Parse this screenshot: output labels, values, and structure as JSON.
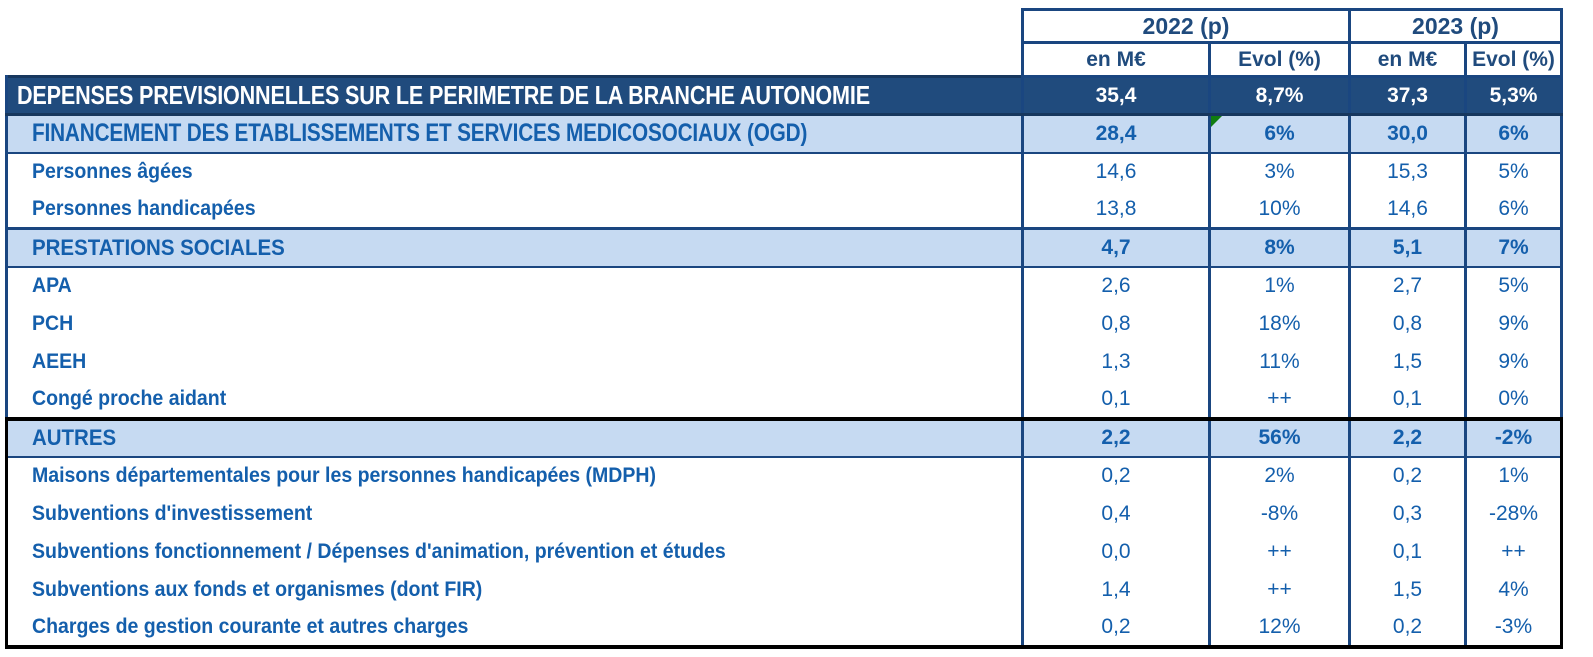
{
  "colors": {
    "navy_fill": "#204B7D",
    "navy_border": "#1A4680",
    "light_blue_fill": "#C6DAF2",
    "text_blue": "#145FAC",
    "black_border": "#000000",
    "error_flag_green": "#107C10",
    "total_text": "#ffffff"
  },
  "header": {
    "year_groups": [
      {
        "label": "2022 (p)"
      },
      {
        "label": "2023 (p)"
      }
    ],
    "subcols": [
      "en M€",
      "Evol (%)",
      "en M€",
      "Evol (%)"
    ]
  },
  "chart_data": {
    "type": "table",
    "title": "Dépenses prévisionnelles sur le périmètre de la branche Autonomie",
    "column_groups": [
      "2022 (p)",
      "2023 (p)"
    ],
    "columns": [
      "",
      "2022 en M€",
      "2022 Evol (%)",
      "2023 en M€",
      "2023 Evol (%)"
    ],
    "rows": [
      {
        "type": "total",
        "condensed": true,
        "label": "DEPENSES PREVISIONNELLES SUR LE PERIMETRE DE LA BRANCHE AUTONOMIE",
        "values": [
          "35,4",
          "8,7%",
          "37,3",
          "5,3%"
        ]
      },
      {
        "type": "section",
        "condensed": true,
        "label": "FINANCEMENT DES ETABLISSEMENTS ET SERVICES MEDICOSOCIAUX (OGD)",
        "values": [
          "28,4",
          "6%",
          "30,0",
          "6%"
        ],
        "flag_col": 1
      },
      {
        "type": "item",
        "condensed": false,
        "label": "Personnes âgées",
        "values": [
          "14,6",
          "3%",
          "15,3",
          "5%"
        ]
      },
      {
        "type": "item",
        "condensed": false,
        "label": "Personnes handicapées",
        "values": [
          "13,8",
          "10%",
          "14,6",
          "6%"
        ]
      },
      {
        "type": "section",
        "condensed": false,
        "label": "PRESTATIONS SOCIALES",
        "values": [
          "4,7",
          "8%",
          "5,1",
          "7%"
        ],
        "top_border": "navy"
      },
      {
        "type": "item",
        "condensed": false,
        "label": "APA",
        "values": [
          "2,6",
          "1%",
          "2,7",
          "5%"
        ]
      },
      {
        "type": "item",
        "condensed": false,
        "label": "PCH",
        "values": [
          "0,8",
          "18%",
          "0,8",
          "9%"
        ]
      },
      {
        "type": "item",
        "condensed": false,
        "label": "AEEH",
        "values": [
          "1,3",
          "11%",
          "1,5",
          "9%"
        ]
      },
      {
        "type": "item",
        "condensed": false,
        "label": "Congé proche aidant",
        "values": [
          "0,1",
          "++",
          "0,1",
          "0%"
        ]
      },
      {
        "type": "section",
        "condensed": false,
        "label": "AUTRES",
        "values": [
          "2,2",
          "56%",
          "2,2",
          "-2%"
        ],
        "top_border": "black",
        "zone": "black"
      },
      {
        "type": "item",
        "condensed": false,
        "label": "Maisons départementales pour les personnes handicapées (MDPH)",
        "values": [
          "0,2",
          "2%",
          "0,2",
          "1%"
        ],
        "zone": "black"
      },
      {
        "type": "item",
        "condensed": false,
        "label": "Subventions d'investissement",
        "values": [
          "0,4",
          "-8%",
          "0,3",
          "-28%"
        ],
        "zone": "black"
      },
      {
        "type": "item",
        "condensed": false,
        "label": "Subventions fonctionnement / Dépenses d'animation, prévention et études",
        "values": [
          "0,0",
          "++",
          "0,1",
          "++"
        ],
        "zone": "black"
      },
      {
        "type": "item",
        "condensed": false,
        "label": "Subventions aux fonds et organismes (dont FIR)",
        "values": [
          "1,4",
          "++",
          "1,5",
          "4%"
        ],
        "zone": "black"
      },
      {
        "type": "item",
        "condensed": false,
        "label": "Charges de gestion courante et autres charges",
        "values": [
          "0,2",
          "12%",
          "0,2",
          "-3%"
        ],
        "zone": "black"
      }
    ]
  }
}
